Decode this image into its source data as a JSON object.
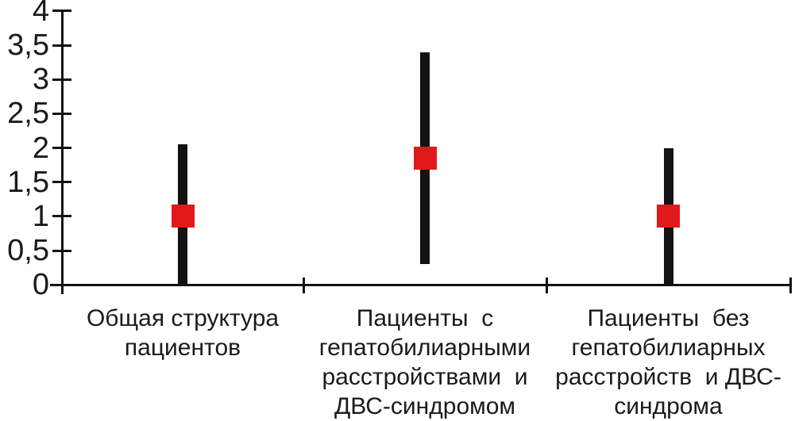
{
  "chart_data": {
    "type": "scatter",
    "subtype": "point-estimate-with-range-bars",
    "title": "",
    "xlabel": "",
    "ylabel": "",
    "ylim": [
      0,
      4
    ],
    "ytick_step": 0.5,
    "yticks": [
      {
        "value": 0,
        "label": "0"
      },
      {
        "value": 0.5,
        "label": "0,5"
      },
      {
        "value": 1,
        "label": "1"
      },
      {
        "value": 1.5,
        "label": "1,5"
      },
      {
        "value": 2,
        "label": "2"
      },
      {
        "value": 2.5,
        "label": "2,5"
      },
      {
        "value": 3,
        "label": "3"
      },
      {
        "value": 3.5,
        "label": "3,5"
      },
      {
        "value": 4,
        "label": "4"
      }
    ],
    "grid": false,
    "legend": false,
    "categories": [
      {
        "label": "Общая структура пациентов",
        "label_lines": [
          "Общая структура",
          "пациентов"
        ],
        "marker": 1.0,
        "range_low": 0,
        "range_high": 2.05
      },
      {
        "label": "Пациенты с гепатобилиарными расстройствами и ДВС-синдромом",
        "label_lines": [
          "Пациенты  с",
          "гепатобилиарными",
          "расстройствами  и",
          "ДВС-синдромом"
        ],
        "marker": 1.85,
        "range_low": 0.3,
        "range_high": 3.4
      },
      {
        "label": "Пациенты без гепатобилиарных расстройств и ДВС-синдрома",
        "label_lines": [
          "Пациенты  без",
          "гепатобилиарных",
          "расстройств  и ДВС-",
          "синдрома"
        ],
        "marker": 1.0,
        "range_low": 0,
        "range_high": 2.0
      }
    ],
    "colors": {
      "marker": "#e2191b",
      "range_bar": "#121212",
      "axis": "#121212",
      "text": "#1a1a1a",
      "background": "#ffffff"
    }
  }
}
